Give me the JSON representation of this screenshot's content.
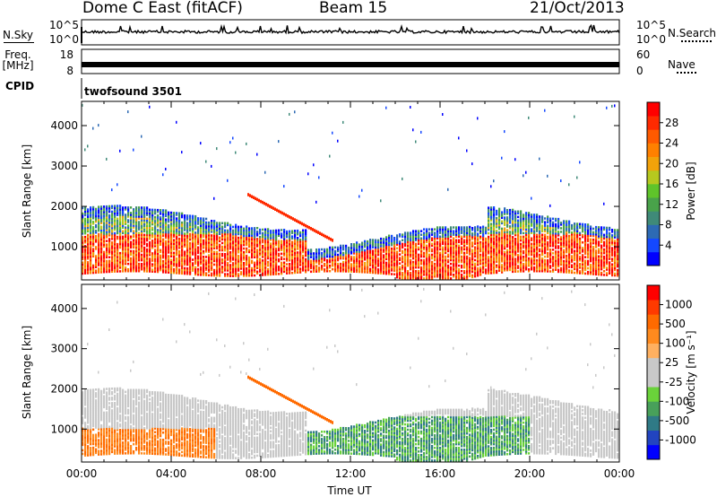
{
  "header": {
    "station": "Dome C East (fitACF)",
    "beam": "Beam 15",
    "date": "21/Oct/2013"
  },
  "strips": {
    "nsky_label": "N.Sky",
    "nsky_ticks": [
      "10^5",
      "10^0"
    ],
    "nsearch_label": "N.Search",
    "nsearch_ticks": [
      "10^5",
      "10^0"
    ],
    "freq_label_1": "Freq.",
    "freq_label_2": "[MHz]",
    "freq_ticks": [
      "18",
      "8"
    ],
    "nave_label": "Nave",
    "nave_ticks": [
      "60",
      "0"
    ],
    "cpid_label": "CPID",
    "cpid_value": "twofsound 3501"
  },
  "chart_data": [
    {
      "type": "heatmap",
      "name": "power",
      "ylabel": "Slant Range [km]",
      "yticks": [
        "1000",
        "2000",
        "3000",
        "4000"
      ],
      "ylim": [
        180,
        4600
      ],
      "xlim": [
        0,
        24
      ],
      "xtick_labels": [],
      "colorbar": {
        "label": "Power [dB]",
        "ticks": [
          "4",
          "8",
          "12",
          "16",
          "20",
          "24",
          "28"
        ],
        "colors": [
          "#0000ff",
          "#1448ff",
          "#2d6ab4",
          "#3f8a78",
          "#49a24a",
          "#5fc42a",
          "#b6c81f",
          "#f2a20a",
          "#ff8000",
          "#ff5a00",
          "#ff2a00",
          "#ff0000"
        ]
      }
    },
    {
      "type": "heatmap",
      "name": "velocity",
      "ylabel": "Slant Range [km]",
      "yticks": [
        "1000",
        "2000",
        "3000",
        "4000"
      ],
      "ylim": [
        180,
        4600
      ],
      "xlim": [
        0,
        24
      ],
      "xlabel": "Time UT",
      "xtick_labels": [
        "00:00",
        "04:00",
        "08:00",
        "12:00",
        "16:00",
        "20:00",
        "00:00"
      ],
      "colorbar": {
        "label": "Velocity [m s⁻¹]",
        "ticks": [
          "1000",
          "500",
          "100",
          "25",
          "-25",
          "-100",
          "-500",
          "-1000"
        ],
        "colors": [
          "#0000ff",
          "#2244c0",
          "#2f7a86",
          "#48a05a",
          "#6ad23a",
          "#c8c8c8",
          "#c8c8c8",
          "#ffb060",
          "#ff8a1e",
          "#ff6a00",
          "#ff3a00",
          "#ff0000"
        ]
      }
    }
  ]
}
